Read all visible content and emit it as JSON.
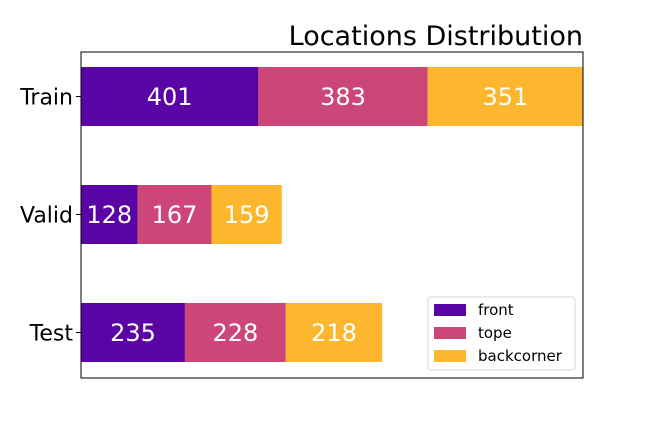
{
  "chart_data": {
    "type": "bar",
    "orientation": "horizontal",
    "stacked": true,
    "title": "Locations Distribution",
    "xlabel": "",
    "ylabel": "",
    "categories": [
      "Train",
      "Valid",
      "Test"
    ],
    "series": [
      {
        "name": "front",
        "color": "#5a04a6",
        "values": [
          401,
          128,
          235
        ]
      },
      {
        "name": "tope",
        "color": "#cc4778",
        "values": [
          383,
          167,
          228
        ]
      },
      {
        "name": "backcorner",
        "color": "#fdb72f",
        "values": [
          351,
          159,
          218
        ]
      }
    ],
    "xlim": [
      0,
      1135
    ],
    "x_ticks_visible": false,
    "grid": false,
    "legend_position": "lower-right",
    "bar_labels": true
  }
}
